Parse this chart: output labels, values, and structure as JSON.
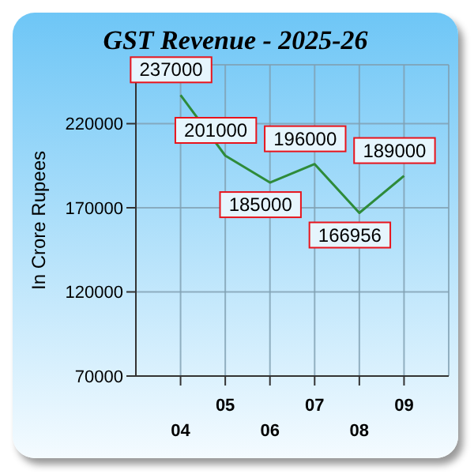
{
  "chart_data": {
    "type": "line",
    "title": "GST Revenue - 2025-26",
    "ylabel": "In Crore Rupees",
    "categories": [
      "04",
      "05",
      "06",
      "07",
      "08",
      "09"
    ],
    "series": [
      {
        "color": "#2e8b3a",
        "values": [
          237000,
          201000,
          185000,
          196000,
          166956,
          189000
        ]
      }
    ],
    "ylim": [
      70000,
      255000
    ],
    "yticks": [
      70000,
      120000,
      170000,
      220000
    ],
    "grid": true,
    "data_labels": true,
    "marker": "none",
    "line_style": "solid",
    "legend": false
  }
}
